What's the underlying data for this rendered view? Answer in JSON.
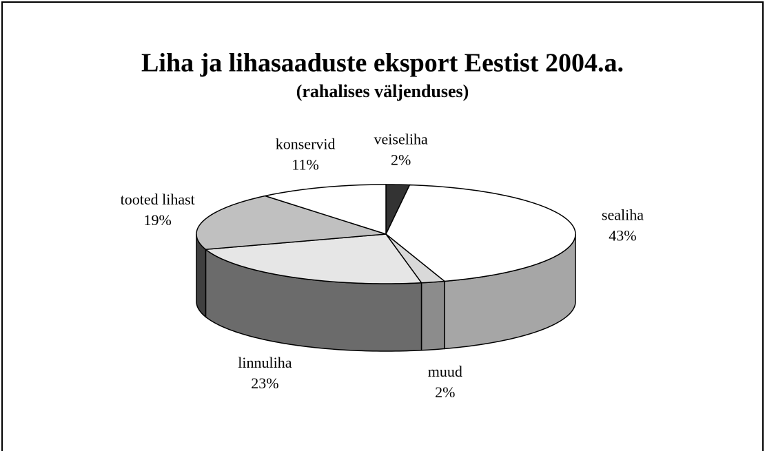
{
  "chart_data": {
    "type": "pie3d",
    "title": "Liha ja lihasaaduste eksport Eestist 2004.a.",
    "subtitle": "(rahalises väljenduses)",
    "categories": [
      "veiseliha",
      "sealiha",
      "muud",
      "linnuliha",
      "tooted lihast",
      "konservid"
    ],
    "values": [
      2,
      43,
      2,
      23,
      19,
      11
    ],
    "value_labels": [
      "2%",
      "43%",
      "2%",
      "23%",
      "19%",
      "11%"
    ],
    "colors": [
      "#333333",
      "#ffffff",
      "#d9d9d9",
      "#e6e6e6",
      "#c0c0c0",
      "#ffffff"
    ],
    "side_colors": [
      "#262626",
      "#a6a6a6",
      "#8c8c8c",
      "#6b6b6b",
      "#404040",
      "#bfbfbf"
    ]
  }
}
